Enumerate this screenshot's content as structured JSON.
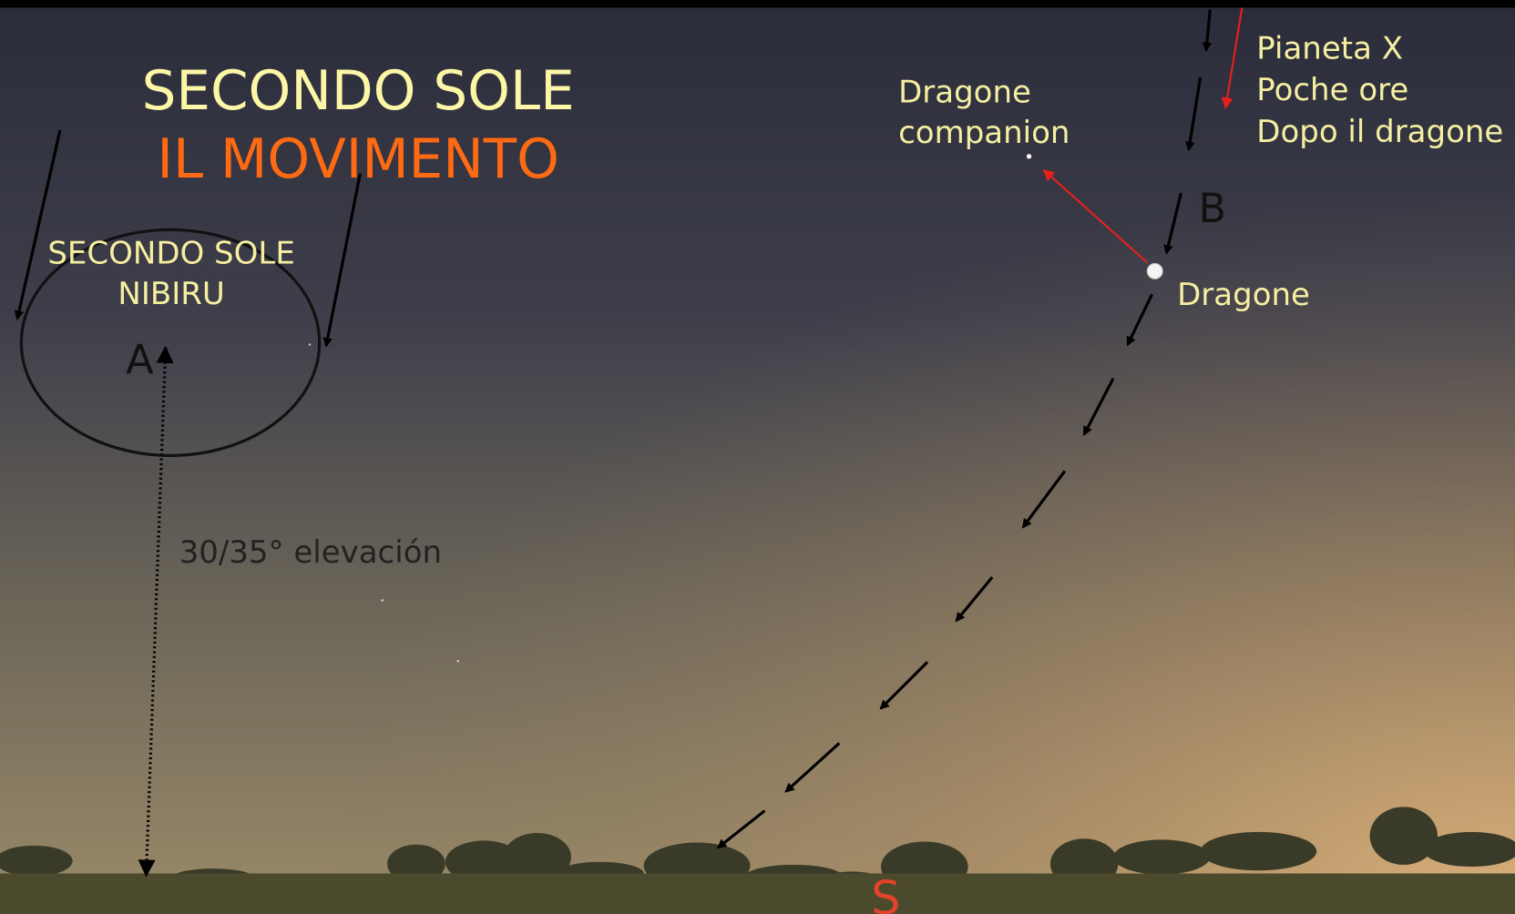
{
  "title": {
    "line1": "SECONDO SOLE",
    "line2": "IL MOVIMENTO"
  },
  "labels": {
    "circle_line1": "SECONDO SOLE",
    "circle_line2": "NIBIRU",
    "point_a": "A",
    "elevation": "30/35° elevación",
    "companion_line1": "Dragone",
    "companion_line2": "companion",
    "dragone": "Dragone",
    "point_b": "B",
    "planet_line1": "Pianeta X",
    "planet_line2": "Poche ore",
    "planet_line3": "Dopo il dragone",
    "south": "S"
  }
}
